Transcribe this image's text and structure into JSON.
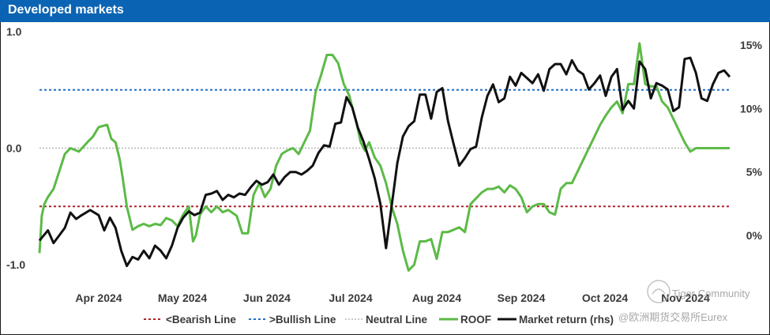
{
  "header": {
    "title": "Developed markets"
  },
  "colors": {
    "header_bg": "#0b64b3",
    "roof": "#5cba47",
    "market": "#111111",
    "bearish": "#b0232a",
    "bullish": "#1f6fc5",
    "neutral": "#b8b8b8"
  },
  "watermark": {
    "community": "Tiger Community",
    "handle": "@欧洲期货交易所Eurex"
  },
  "chart_data": {
    "type": "line",
    "title": "Developed markets",
    "x_ticks": [
      "Apr 2024",
      "May 2024",
      "Jun 2024",
      "Jul 2024",
      "Aug 2024",
      "Sep 2024",
      "Oct 2024",
      "Nov 2024"
    ],
    "left_axis": {
      "ticks": [
        "1.0",
        "0.0",
        "-1.0"
      ],
      "ylim": [
        -1.15,
        1.0
      ]
    },
    "right_axis": {
      "ticks": [
        "15%",
        "10%",
        "5%",
        "0%"
      ],
      "ylim": [
        -2.4,
        17.0
      ]
    },
    "reference_lines": [
      {
        "name": "<Bearish Line",
        "value": -0.5
      },
      {
        "name": ">Bullish Line",
        "value": 0.5
      },
      {
        "name": "Neutral Line",
        "value": 0.0
      }
    ],
    "legend": [
      "<Bearish Line",
      ">Bullish Line",
      "Neutral Line",
      "ROOF",
      "Market return (rhs)"
    ],
    "series": [
      {
        "name": "ROOF",
        "axis": "left",
        "t": [
          0,
          0.8,
          1.7,
          3,
          5,
          7,
          9,
          11,
          14,
          17,
          19,
          21,
          24,
          25.5,
          27,
          28.5,
          29.5,
          31,
          33,
          35,
          37,
          39,
          41,
          43,
          45,
          47,
          49,
          51,
          53,
          54.5,
          55.5,
          57,
          59,
          61,
          63,
          65,
          67,
          70,
          72,
          74,
          76,
          78,
          80,
          82,
          84,
          86,
          88,
          90,
          92,
          94,
          96,
          98,
          100,
          102,
          104,
          106,
          108,
          110,
          111,
          112.5,
          114,
          115.5,
          117,
          119,
          121,
          123,
          125,
          127,
          129,
          131,
          133,
          135,
          137,
          139,
          141,
          143,
          145,
          147,
          149,
          151,
          153,
          155,
          157,
          159,
          161,
          163,
          165,
          167,
          169,
          171,
          173,
          175,
          177,
          179,
          181,
          183,
          185,
          187,
          189,
          191,
          193,
          195,
          197,
          199,
          201,
          203,
          205,
          207,
          209,
          211,
          213,
          215,
          217,
          219,
          221,
          223,
          225,
          227,
          229,
          231,
          233,
          235,
          236.5,
          238,
          239.5,
          241,
          243,
          245
        ],
        "values": [
          -0.9,
          -0.58,
          -0.48,
          -0.42,
          -0.35,
          -0.2,
          -0.05,
          0.0,
          -0.03,
          0.05,
          0.1,
          0.18,
          0.2,
          0.08,
          0.05,
          -0.1,
          -0.25,
          -0.5,
          -0.7,
          -0.67,
          -0.65,
          -0.67,
          -0.65,
          -0.66,
          -0.6,
          -0.62,
          -0.67,
          -0.57,
          -0.5,
          -0.8,
          -0.75,
          -0.57,
          -0.5,
          -0.55,
          -0.5,
          -0.55,
          -0.53,
          -0.58,
          -0.73,
          -0.73,
          -0.4,
          -0.3,
          -0.42,
          -0.35,
          -0.15,
          -0.05,
          -0.02,
          0.0,
          -0.05,
          0.05,
          0.15,
          0.48,
          0.63,
          0.8,
          0.8,
          0.73,
          0.55,
          0.45,
          0.35,
          0.22,
          0.05,
          -0.02,
          0.05,
          -0.08,
          -0.15,
          -0.3,
          -0.5,
          -0.65,
          -0.88,
          -1.05,
          -1.0,
          -0.8,
          -0.8,
          -0.78,
          -0.95,
          -0.72,
          -0.72,
          -0.7,
          -0.68,
          -0.72,
          -0.48,
          -0.43,
          -0.38,
          -0.35,
          -0.35,
          -0.33,
          -0.38,
          -0.32,
          -0.35,
          -0.42,
          -0.55,
          -0.5,
          -0.48,
          -0.48,
          -0.55,
          -0.57,
          -0.35,
          -0.3,
          -0.3,
          -0.2,
          -0.1,
          0.0,
          0.1,
          0.2,
          0.28,
          0.35,
          0.4,
          0.3,
          0.55,
          0.55,
          0.9,
          0.55,
          0.53,
          0.53,
          0.4,
          0.35,
          0.25,
          0.15,
          0.05,
          -0.03,
          0.0,
          0.0,
          0.0,
          0.0,
          0.0,
          0.0,
          0.0,
          0.0
        ],
        "display_until": 118
      },
      {
        "name": "Market return (rhs)",
        "axis": "right",
        "t": [
          0,
          3,
          5,
          7,
          9,
          11,
          13,
          15,
          18,
          21,
          23,
          25,
          27,
          29,
          31,
          33,
          35,
          37,
          39,
          41,
          43,
          45,
          47,
          49,
          51,
          53,
          55,
          57,
          59,
          61,
          63,
          65,
          67,
          69,
          71,
          73,
          75,
          77,
          79,
          81,
          83,
          85,
          87,
          89,
          91,
          93,
          95,
          97,
          99,
          101,
          103,
          105,
          107,
          109,
          111,
          113,
          115,
          117,
          119,
          121,
          123,
          125,
          127,
          129,
          131,
          133,
          135,
          137,
          139,
          141,
          143,
          145,
          147,
          149,
          151,
          153,
          155,
          157,
          159,
          161,
          163,
          165,
          167,
          169,
          171,
          173,
          175,
          177,
          179,
          181,
          183,
          185,
          187,
          189,
          191,
          193,
          195,
          197,
          199,
          201,
          203,
          205,
          207,
          209,
          211,
          213,
          215,
          217,
          219,
          221,
          223,
          225,
          227,
          229,
          231,
          233,
          235,
          237,
          239,
          241,
          243,
          245
        ],
        "values": [
          -0.4,
          0.4,
          -0.6,
          0.0,
          0.6,
          1.8,
          1.3,
          1.6,
          2.0,
          1.6,
          0.4,
          1.4,
          0.6,
          -1.2,
          -2.4,
          -1.7,
          -1.9,
          -1.2,
          -1.8,
          -0.8,
          -1.2,
          -1.8,
          -0.8,
          0.6,
          1.4,
          1.9,
          1.6,
          1.8,
          3.2,
          3.3,
          3.5,
          2.8,
          3.2,
          3.0,
          3.3,
          3.2,
          3.8,
          4.3,
          4.0,
          4.2,
          4.8,
          4.0,
          4.6,
          5.0,
          5.0,
          4.8,
          5.1,
          5.5,
          6.5,
          7.1,
          7.0,
          8.8,
          8.9,
          10.9,
          10.1,
          8.5,
          7.4,
          6.0,
          4.5,
          2.5,
          -1.0,
          2.3,
          5.7,
          7.8,
          8.6,
          9.0,
          11.1,
          11.1,
          9.2,
          11.3,
          11.6,
          9.0,
          7.2,
          5.5,
          6.1,
          6.8,
          7.0,
          9.3,
          11.0,
          11.9,
          10.5,
          10.8,
          12.5,
          11.8,
          12.8,
          12.4,
          12.0,
          12.7,
          11.4,
          13.1,
          13.5,
          13.5,
          12.7,
          13.8,
          13.0,
          12.7,
          11.5,
          12.0,
          12.6,
          11.0,
          12.5,
          13.1,
          9.9,
          10.6,
          10.0,
          13.7,
          13.1,
          10.8,
          12.0,
          11.8,
          11.5,
          9.8,
          10.1,
          13.9,
          14.0,
          12.8,
          10.8,
          10.6,
          11.9,
          12.8,
          13.0,
          12.5
        ],
        "display_until": 118
      }
    ]
  }
}
